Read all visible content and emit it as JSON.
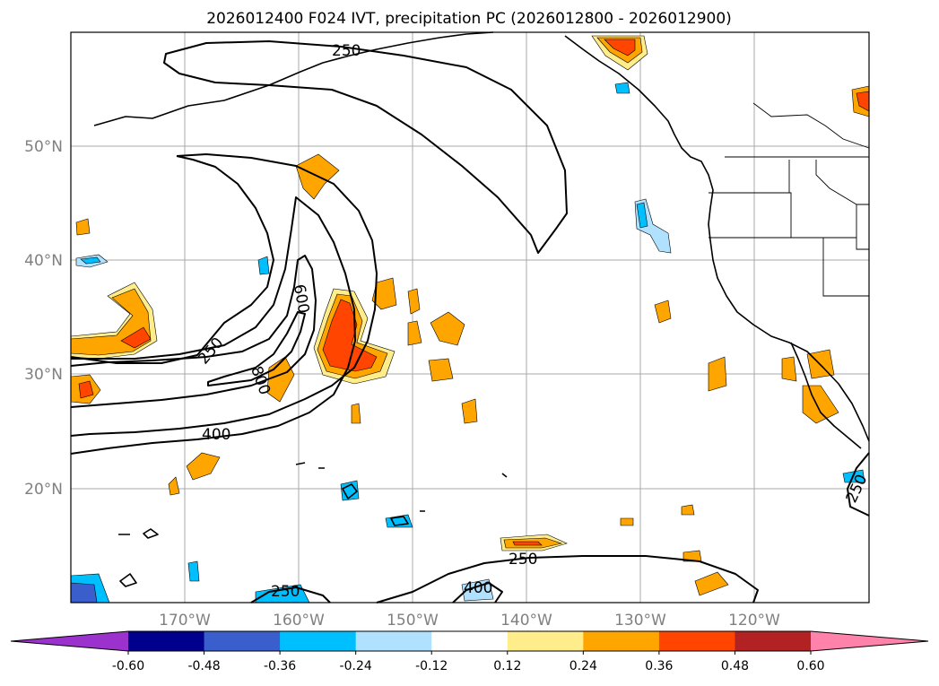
{
  "figure": {
    "title": "2026012400 F024 IVT, precipitation PC (2026012800 - 2026012900)"
  },
  "map": {
    "lat_labels": [
      "50°N",
      "40°N",
      "30°N",
      "20°N"
    ],
    "lon_labels": [
      "170°W",
      "160°W",
      "150°W",
      "140°W",
      "130°W",
      "120°W"
    ],
    "extent": {
      "lon_min": -180,
      "lon_max": -110,
      "lat_min": 10,
      "lat_max": 60
    }
  },
  "ivt_contour_labels": {
    "top": "250",
    "west": "250",
    "inner": "600",
    "core": "800",
    "mid": "400",
    "south_east": "250",
    "south_mid": "400",
    "south_west": "250",
    "east_edge": "250"
  },
  "colorbar": {
    "ticks": [
      "-0.60",
      "-0.48",
      "-0.36",
      "-0.24",
      "-0.12",
      "0.12",
      "0.24",
      "0.36",
      "0.48",
      "0.60"
    ],
    "colors": [
      "#9b32cd",
      "#00008c",
      "#3a5fcd",
      "#00bfff",
      "#b0e2ff",
      "#ffffff",
      "#ffec8b",
      "#ffa500",
      "#ff4500",
      "#b22222",
      "#ff82ab"
    ]
  }
}
